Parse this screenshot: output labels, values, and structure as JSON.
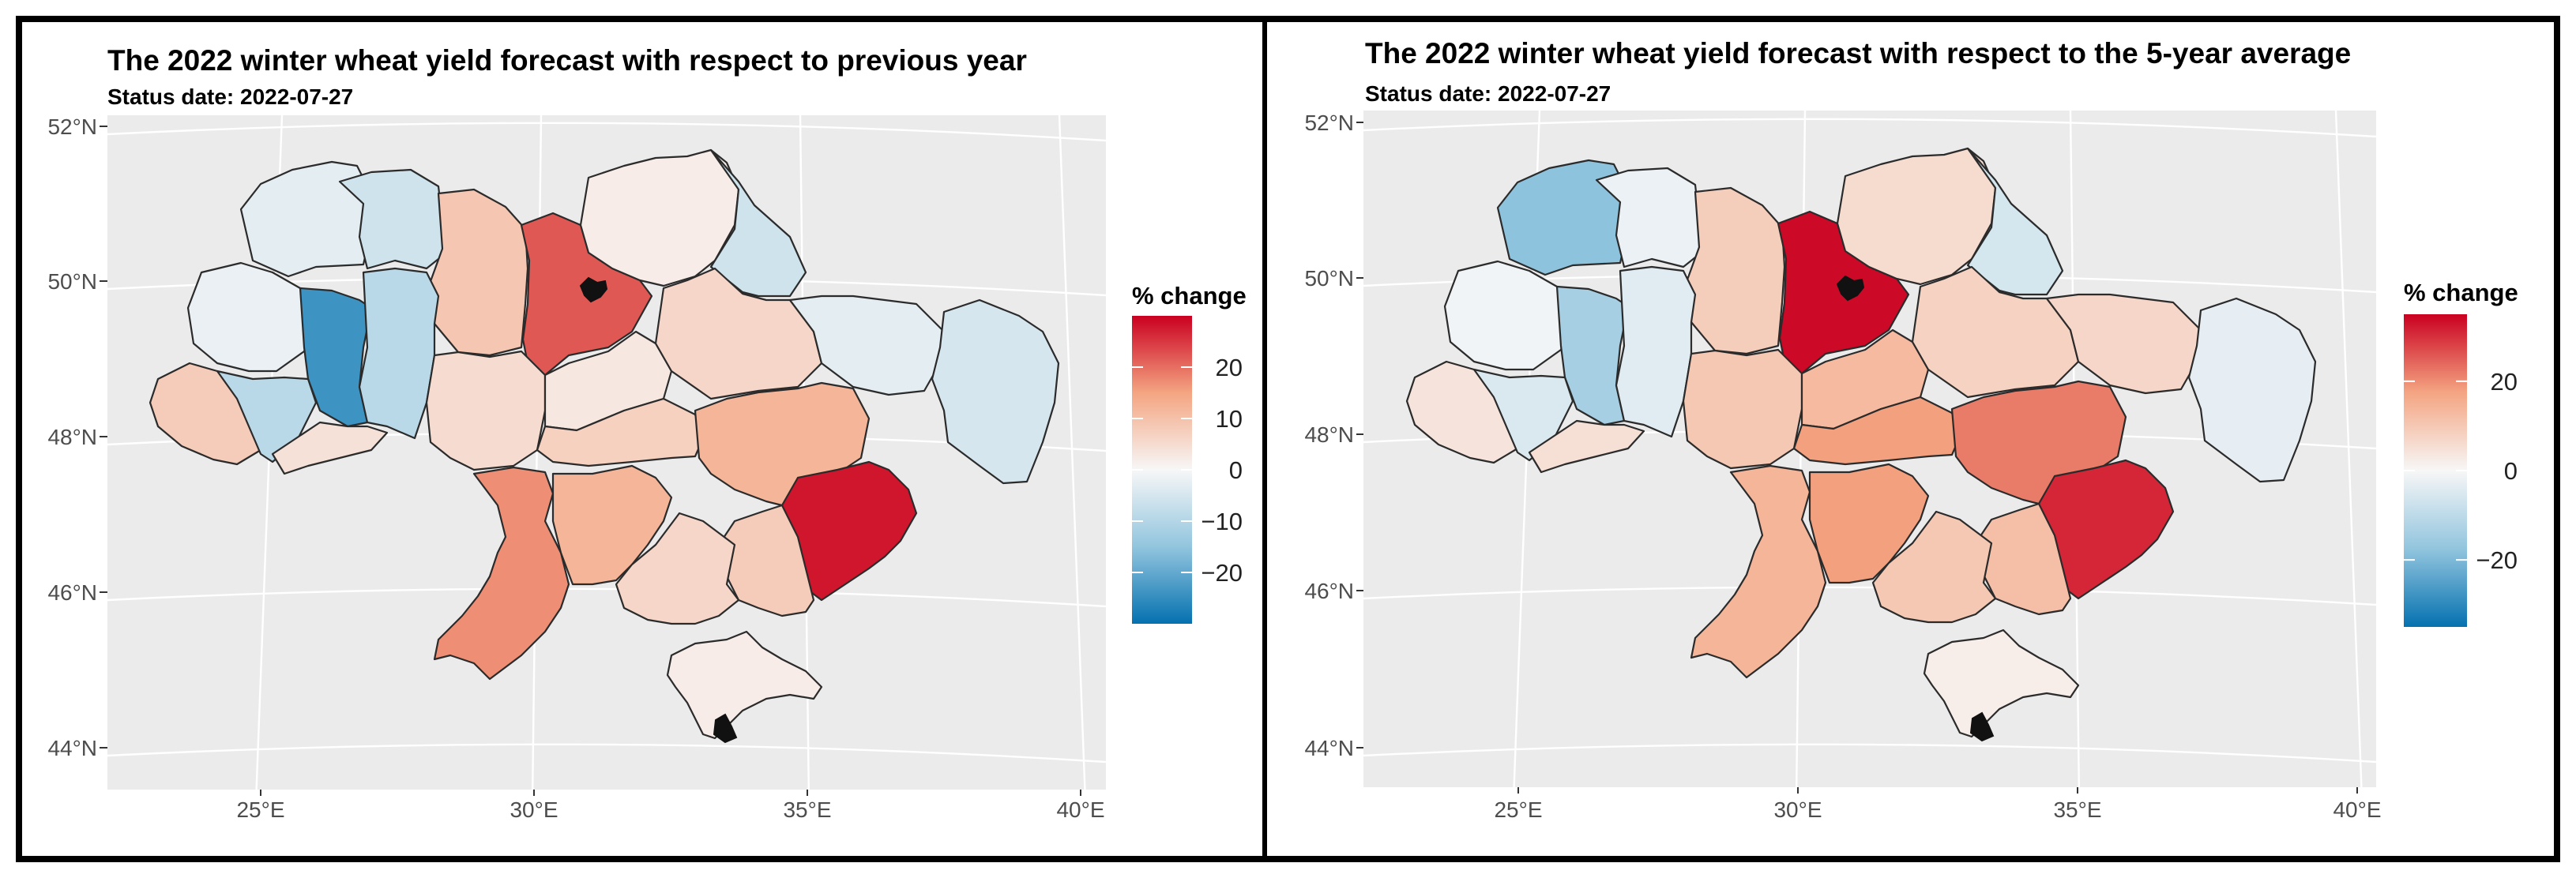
{
  "panels": [
    {
      "title": "The 2022 winter wheat yield forecast with respect to previous year",
      "subtitle": "Status date:  2022-07-27",
      "legend_title": "% change",
      "legend_ticks": [
        "20",
        "10",
        "0",
        "−10",
        "−20"
      ],
      "legend_range": [
        -30,
        30
      ],
      "lat_labels": [
        "52°N",
        "50°N",
        "48°N",
        "46°N",
        "44°N"
      ],
      "lon_labels": [
        "25°E",
        "30°E",
        "35°E",
        "40°E"
      ],
      "region_values": {
        "volyn": -3,
        "rivne": -6,
        "zhytomyr": 9,
        "kyiv": 22,
        "chernihiv": 2,
        "sumy": -6,
        "lviv": -2,
        "ternopil": -24,
        "khmelnytskyi": -9,
        "vinnytsia": 5,
        "cherkasy": 3,
        "poltava": 6,
        "kharkiv": -3,
        "luhansk": -5,
        "zakarpattia": 8,
        "ivano-frankivsk": -9,
        "chernivtsi": 4,
        "kirovohrad": 7,
        "dnipropetrovsk": 12,
        "donetsk": 28,
        "odesa": 17,
        "mykolaiv": 12,
        "zaporizhzhia": 8,
        "kherson": 6,
        "crimea": 2
      }
    },
    {
      "title": "The 2022 winter wheat yield forecast with respect to the 5-year average",
      "subtitle": "Status date:  2022-07-27",
      "legend_title": "% change",
      "legend_ticks": [
        "20",
        "0",
        "−20"
      ],
      "legend_range": [
        -35,
        35
      ],
      "lat_labels": [
        "52°N",
        "50°N",
        "48°N",
        "46°N",
        "44°N"
      ],
      "lon_labels": [
        "25°E",
        "30°E",
        "35°E",
        "40°E"
      ],
      "region_values": {
        "volyn": -18,
        "rivne": -2,
        "zhytomyr": 9,
        "kyiv": 34,
        "chernihiv": 6,
        "sumy": -6,
        "lviv": -1,
        "ternopil": -14,
        "khmelnytskyi": -4,
        "vinnytsia": 10,
        "cherkasy": 13,
        "poltava": 8,
        "kharkiv": 7,
        "luhansk": -3,
        "zakarpattia": 4,
        "ivano-frankivsk": -5,
        "chernivtsi": 5,
        "kirovohrad": 18,
        "dnipropetrovsk": 22,
        "donetsk": 31,
        "odesa": 14,
        "mykolaiv": 18,
        "zaporizhzhia": 12,
        "kherson": 10,
        "crimea": 2
      }
    }
  ]
}
